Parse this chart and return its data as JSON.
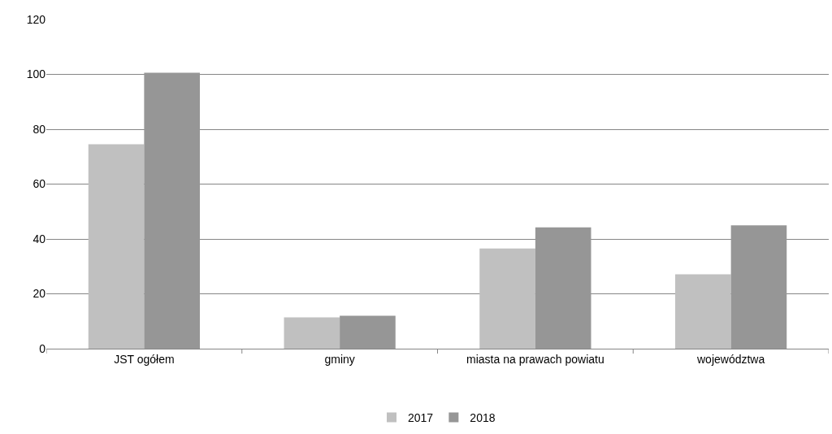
{
  "chart_data": {
    "type": "bar",
    "categories": [
      "JST ogółem",
      "gminy",
      "miasta na prawach powiatu",
      "województwa"
    ],
    "series": [
      {
        "name": "2017",
        "color": "#c0c0c0",
        "values": [
          74.5,
          11.4,
          36.5,
          27.1
        ]
      },
      {
        "name": "2018",
        "color": "#969696",
        "values": [
          100.6,
          12.0,
          44.2,
          45.0
        ]
      }
    ],
    "ylim": [
      0,
      120
    ],
    "yticks": [
      0,
      20,
      40,
      60,
      80,
      100,
      120
    ],
    "grid": "y",
    "legend": "bottom"
  }
}
